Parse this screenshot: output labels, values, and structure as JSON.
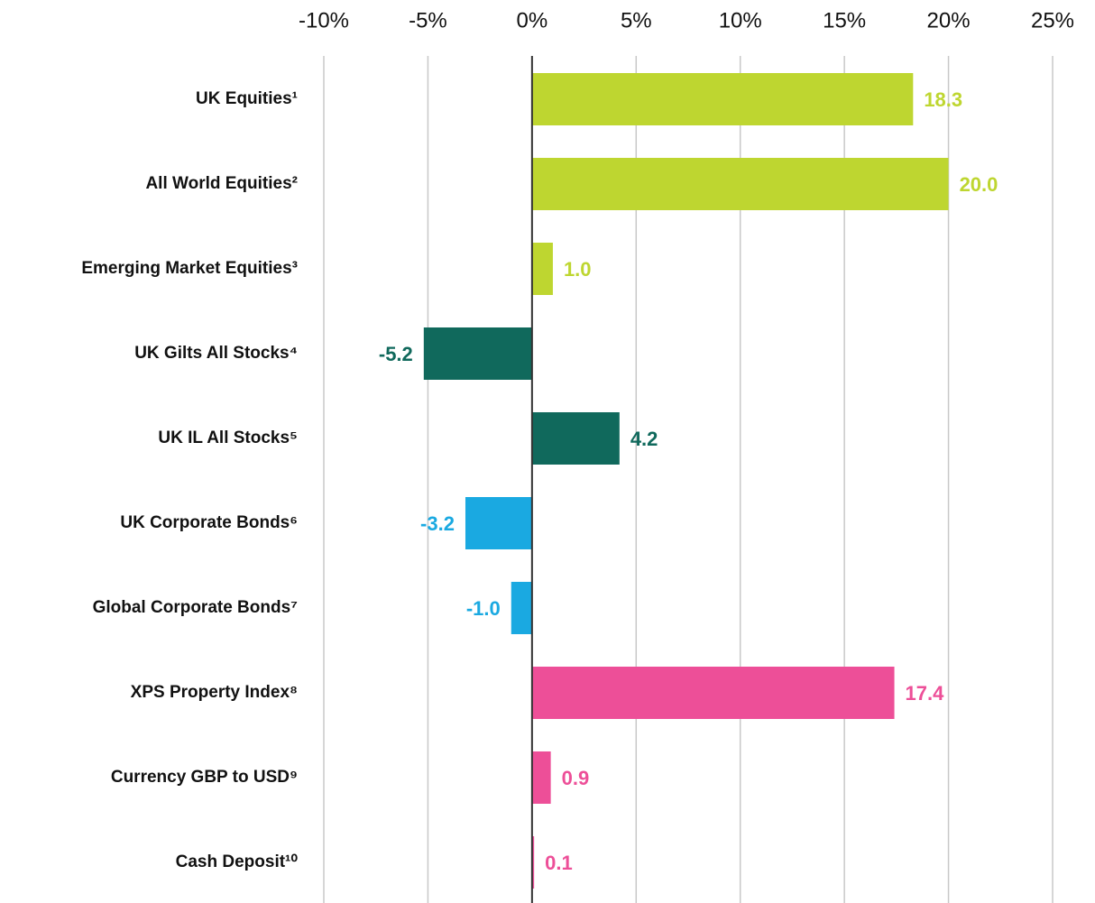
{
  "chart_data": {
    "type": "bar",
    "orientation": "horizontal",
    "categories": [
      "UK Equities¹",
      "All World Equities²",
      "Emerging Market Equities³",
      "UK Gilts All Stocks⁴",
      "UK IL All Stocks⁵",
      "UK Corporate Bonds⁶",
      "Global Corporate Bonds⁷",
      "XPS Property Index⁸",
      "Currency GBP to USD⁹",
      "Cash Deposit¹⁰"
    ],
    "values": [
      18.3,
      20.0,
      1.0,
      -5.2,
      4.2,
      -3.2,
      -1.0,
      17.4,
      0.9,
      0.1
    ],
    "value_labels": [
      "18.3",
      "20.0",
      "1.0",
      "-5.2",
      "4.2",
      "-3.2",
      "-1.0",
      "17.4",
      "0.9",
      "0.1"
    ],
    "colors": [
      "#bed630",
      "#bed630",
      "#bed630",
      "#10695c",
      "#10695c",
      "#1aa9e1",
      "#1aa9e1",
      "#ed4f98",
      "#ed4f98",
      "#ed4f98"
    ],
    "xlim": [
      -10,
      25
    ],
    "xticks": [
      {
        "value": -10,
        "label": "-10%"
      },
      {
        "value": -5,
        "label": "-5%"
      },
      {
        "value": 0,
        "label": "0%"
      },
      {
        "value": 5,
        "label": "5%"
      },
      {
        "value": 10,
        "label": "10%"
      },
      {
        "value": 15,
        "label": "15%"
      },
      {
        "value": 20,
        "label": "20%"
      },
      {
        "value": 25,
        "label": "25%"
      }
    ],
    "grid": true
  }
}
